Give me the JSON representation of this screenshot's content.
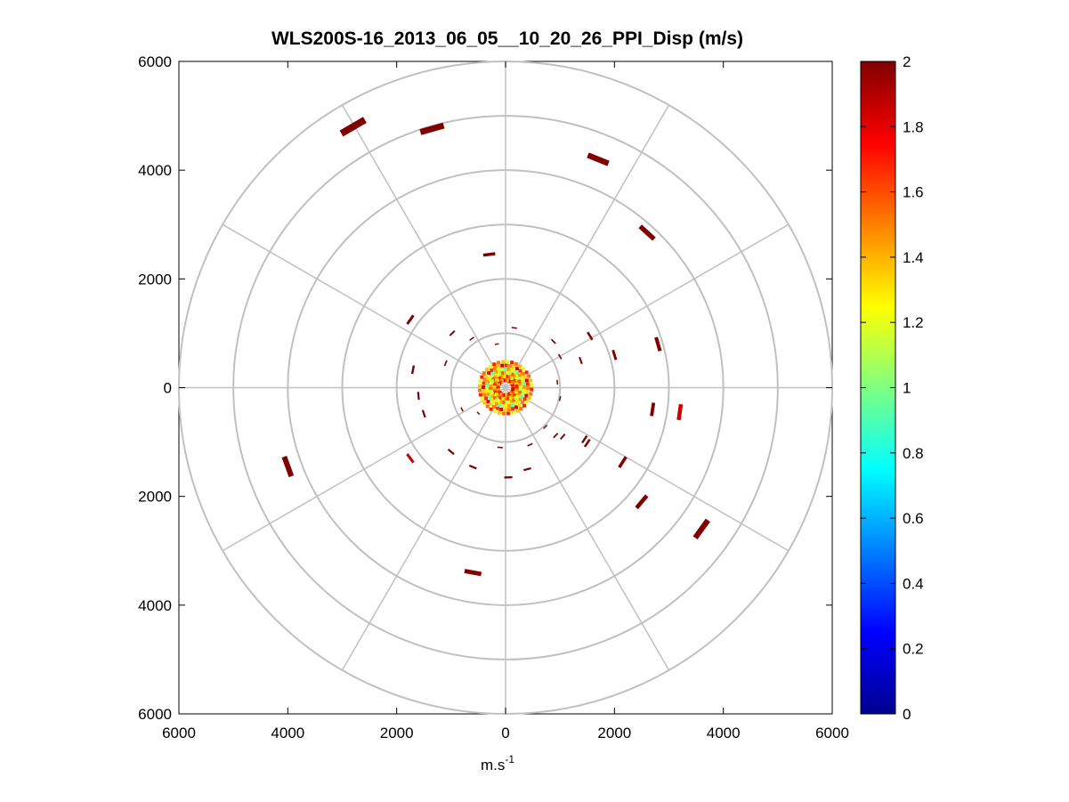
{
  "chart_data": {
    "type": "scatter",
    "title": "WLS200S-16_2013_06_05__10_20_26_PPI_Disp (m/s)",
    "xlabel": "m.s",
    "xlabel_superscript": "-1",
    "ylabel": "",
    "xlim": [
      -6000,
      6000
    ],
    "ylim": [
      -6000,
      6000
    ],
    "x_ticks": [
      -6000,
      -4000,
      -2000,
      0,
      2000,
      4000,
      6000
    ],
    "x_tick_labels": [
      "6000",
      "4000",
      "2000",
      "0",
      "2000",
      "4000",
      "6000"
    ],
    "y_ticks": [
      6000,
      4000,
      2000,
      0,
      -2000,
      -4000,
      -6000
    ],
    "y_tick_labels": [
      "6000",
      "4000",
      "2000",
      "0",
      "2000",
      "4000",
      "6000"
    ],
    "polar_grid": {
      "range_rings": [
        1000,
        2000,
        3000,
        4000,
        5000,
        6000
      ],
      "spoke_angles_deg": [
        0,
        30,
        60,
        90,
        120,
        150,
        180,
        210,
        240,
        270,
        300,
        330
      ]
    },
    "colorbar": {
      "label": "",
      "min": 0,
      "max": 2,
      "ticks": [
        0,
        0.2,
        0.4,
        0.6,
        0.8,
        1,
        1.2,
        1.4,
        1.6,
        1.8,
        2
      ],
      "tick_labels": [
        "0",
        "0.2",
        "0.4",
        "0.6",
        "0.8",
        "1",
        "1.2",
        "1.4",
        "1.6",
        "1.8",
        "2"
      ],
      "colormap": "jet"
    },
    "points": [
      {
        "x": -2800,
        "y": 4800,
        "v": 2.0
      },
      {
        "x": -1350,
        "y": 4760,
        "v": 2.0
      },
      {
        "x": 1700,
        "y": 4200,
        "v": 2.0
      },
      {
        "x": 2600,
        "y": 2850,
        "v": 2.0
      },
      {
        "x": -300,
        "y": 2450,
        "v": 2.0
      },
      {
        "x": 2800,
        "y": 800,
        "v": 2.0
      },
      {
        "x": -1750,
        "y": 1250,
        "v": 2.0
      },
      {
        "x": 2700,
        "y": -400,
        "v": 2.0
      },
      {
        "x": 3200,
        "y": -450,
        "v": 1.85
      },
      {
        "x": -4000,
        "y": -1450,
        "v": 2.0
      },
      {
        "x": 2150,
        "y": -1370,
        "v": 2.0
      },
      {
        "x": 2500,
        "y": -2100,
        "v": 2.0
      },
      {
        "x": 3600,
        "y": -2600,
        "v": 2.0
      },
      {
        "x": -600,
        "y": -3400,
        "v": 2.0
      },
      {
        "x": -1750,
        "y": -1300,
        "v": 1.85
      },
      {
        "x": 2000,
        "y": 600,
        "v": 2.0
      },
      {
        "x": 1550,
        "y": 950,
        "v": 2.0
      },
      {
        "x": 880,
        "y": 850,
        "v": 2.0
      },
      {
        "x": -980,
        "y": 1000,
        "v": 2.0
      },
      {
        "x": 160,
        "y": 1100,
        "v": 2.0
      },
      {
        "x": -620,
        "y": 900,
        "v": 2.0
      },
      {
        "x": -160,
        "y": 800,
        "v": 2.0
      },
      {
        "x": 1380,
        "y": 500,
        "v": 2.0
      },
      {
        "x": -1700,
        "y": 330,
        "v": 2.0
      },
      {
        "x": -1100,
        "y": 450,
        "v": 2.0
      },
      {
        "x": 1000,
        "y": 570,
        "v": 2.0
      },
      {
        "x": -1500,
        "y": -480,
        "v": 2.0
      },
      {
        "x": -1600,
        "y": -150,
        "v": 2.0
      },
      {
        "x": 950,
        "y": 100,
        "v": 2.0
      },
      {
        "x": 1000,
        "y": -200,
        "v": 2.0
      },
      {
        "x": 1050,
        "y": -900,
        "v": 2.0
      },
      {
        "x": 1450,
        "y": -950,
        "v": 2.0
      },
      {
        "x": 1500,
        "y": -1020,
        "v": 2.0
      },
      {
        "x": 730,
        "y": -720,
        "v": 2.0
      },
      {
        "x": 920,
        "y": -880,
        "v": 2.0
      },
      {
        "x": -1000,
        "y": -1180,
        "v": 2.0
      },
      {
        "x": -800,
        "y": -400,
        "v": 2.0
      },
      {
        "x": -500,
        "y": -470,
        "v": 2.0
      },
      {
        "x": -100,
        "y": -1100,
        "v": 2.0
      },
      {
        "x": 400,
        "y": -1500,
        "v": 2.0
      },
      {
        "x": 50,
        "y": -1650,
        "v": 2.0
      },
      {
        "x": -600,
        "y": -1460,
        "v": 2.0
      },
      {
        "x": 450,
        "y": -1050,
        "v": 2.0
      }
    ],
    "center_cluster": {
      "radius_min": 50,
      "radius_max": 500,
      "value_range": [
        0.7,
        2.0
      ]
    }
  }
}
